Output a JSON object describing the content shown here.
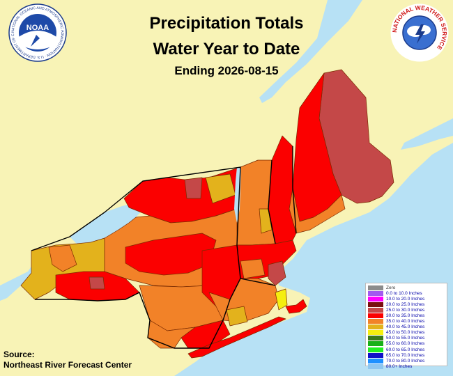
{
  "title": {
    "line1": "Precipitation Totals",
    "line2": "Water Year to Date",
    "line3": "Ending 2026-08-15"
  },
  "source": {
    "label": "Source:",
    "name": "Northeast River Forecast Center"
  },
  "logos": {
    "noaa_center": "NOAA",
    "noaa_ring": "NATIONAL OCEANIC AND ATMOSPHERIC ADMINISTRATION · U.S. DEPARTMENT OF COMMERCE",
    "nws_ring": "NATIONAL WEATHER SERVICE"
  },
  "colors": {
    "land_background": "#f8f3b6",
    "water": "#b7e1f5",
    "county_border": "#7a2a00",
    "state_border": "#000000"
  },
  "legend": [
    {
      "label": "Zero",
      "color": "#8c8c8c"
    },
    {
      "label": "0.0 to 10.0 Inches",
      "color": "#a259f0"
    },
    {
      "label": "10.0 to 20.0 Inches",
      "color": "#ff00ff"
    },
    {
      "label": "20.0 to 25.0 Inches",
      "color": "#7a0f0f"
    },
    {
      "label": "25.0 to 30.0 Inches",
      "color": "#c44848"
    },
    {
      "label": "30.0 to 35.0 Inches",
      "color": "#fb0000"
    },
    {
      "label": "35.0 to 40.0 Inches",
      "color": "#f28228"
    },
    {
      "label": "40.0 to 45.0 Inches",
      "color": "#e3b21c"
    },
    {
      "label": "45.0 to 50.0 Inches",
      "color": "#f5ef10"
    },
    {
      "label": "50.0 to 55.0 Inches",
      "color": "#3a7a1a"
    },
    {
      "label": "55.0 to 60.0 Inches",
      "color": "#18b018"
    },
    {
      "label": "60.0 to 65.0 Inches",
      "color": "#22f022"
    },
    {
      "label": "65.0 to 70.0 Inches",
      "color": "#1010c8"
    },
    {
      "label": "70.0 to 80.0 Inches",
      "color": "#1e90ff"
    },
    {
      "label": "80.0+ Inches",
      "color": "#8ec6f0"
    }
  ]
}
